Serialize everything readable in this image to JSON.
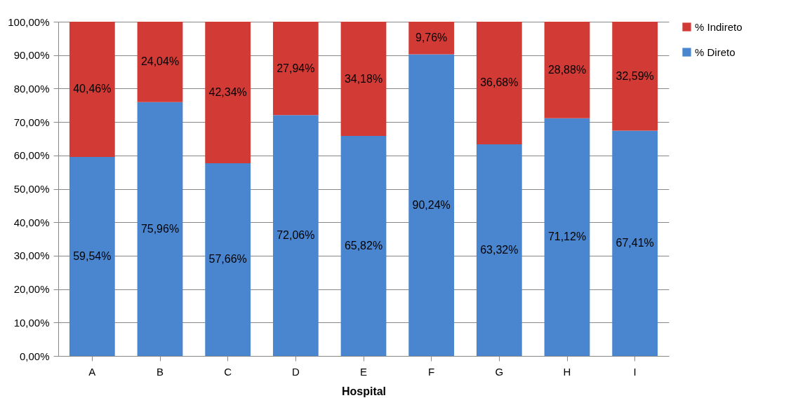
{
  "chart_data": {
    "type": "bar",
    "stacked": true,
    "xlabel": "Hospital",
    "categories": [
      "A",
      "B",
      "C",
      "D",
      "E",
      "F",
      "G",
      "H",
      "I"
    ],
    "series": [
      {
        "name": "% Direto",
        "color": "#4a86d0",
        "values": [
          59.54,
          75.96,
          57.66,
          72.06,
          65.82,
          90.24,
          63.32,
          71.12,
          67.41
        ],
        "value_labels": [
          "59,54%",
          "75,96%",
          "57,66%",
          "72,06%",
          "65,82%",
          "90,24%",
          "63,32%",
          "71,12%",
          "67,41%"
        ]
      },
      {
        "name": "% Indireto",
        "color": "#d23a36",
        "values": [
          40.46,
          24.04,
          42.34,
          27.94,
          34.18,
          9.76,
          36.68,
          28.88,
          32.59
        ],
        "value_labels": [
          "40,46%",
          "24,04%",
          "42,34%",
          "27,94%",
          "34,18%",
          "9,76%",
          "36,68%",
          "28,88%",
          "32,59%"
        ]
      }
    ],
    "ylim": [
      0,
      100
    ],
    "yticks": [
      {
        "value": 0,
        "label": "0,00%"
      },
      {
        "value": 10,
        "label": "10,00%"
      },
      {
        "value": 20,
        "label": "20,00%"
      },
      {
        "value": 30,
        "label": "30,00%"
      },
      {
        "value": 40,
        "label": "40,00%"
      },
      {
        "value": 50,
        "label": "50,00%"
      },
      {
        "value": 60,
        "label": "60,00%"
      },
      {
        "value": 70,
        "label": "70,00%"
      },
      {
        "value": 80,
        "label": "80,00%"
      },
      {
        "value": 90,
        "label": "90,00%"
      },
      {
        "value": 100,
        "label": "100,00%"
      }
    ],
    "grid": "y",
    "legend": "right"
  }
}
